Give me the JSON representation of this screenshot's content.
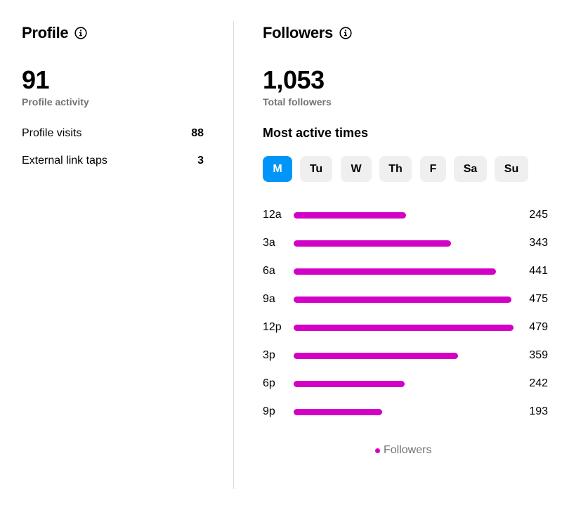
{
  "profile": {
    "title": "Profile",
    "info_icon": "info-icon",
    "activity_value": "91",
    "activity_label": "Profile activity",
    "rows": [
      {
        "label": "Profile visits",
        "value": "88"
      },
      {
        "label": "External link taps",
        "value": "3"
      }
    ]
  },
  "followers": {
    "title": "Followers",
    "info_icon": "info-icon",
    "total_value": "1,053",
    "total_label": "Total followers",
    "most_active_title": "Most active times",
    "days": [
      {
        "label": "M",
        "active": true
      },
      {
        "label": "Tu",
        "active": false
      },
      {
        "label": "W",
        "active": false
      },
      {
        "label": "Th",
        "active": false
      },
      {
        "label": "F",
        "active": false
      },
      {
        "label": "Sa",
        "active": false
      },
      {
        "label": "Su",
        "active": false
      }
    ],
    "legend_label": "Followers"
  },
  "colors": {
    "accent": "#0095f6",
    "bar": "#d300c5",
    "muted": "#737373",
    "chip": "#efefef"
  },
  "chart_data": {
    "type": "bar",
    "orientation": "horizontal",
    "categories": [
      "12a",
      "3a",
      "6a",
      "9a",
      "12p",
      "3p",
      "6p",
      "9p"
    ],
    "series": [
      {
        "name": "Followers",
        "values": [
          245,
          343,
          441,
          475,
          479,
          359,
          242,
          193
        ]
      }
    ],
    "legend": "bottom-center",
    "grid": false
  }
}
